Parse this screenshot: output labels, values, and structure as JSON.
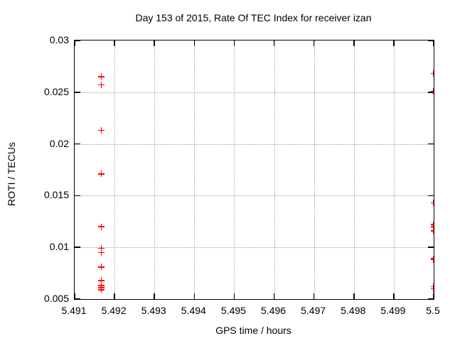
{
  "chart_data": {
    "type": "scatter",
    "title": "Day 153 of 2015, Rate Of TEC Index for receiver izan",
    "xlabel": "GPS time / hours",
    "ylabel": "ROTI / TECUs",
    "xlim": [
      5.491,
      5.5
    ],
    "ylim": [
      0.005,
      0.03
    ],
    "x_ticks": [
      5.491,
      5.492,
      5.493,
      5.494,
      5.495,
      5.496,
      5.497,
      5.498,
      5.499,
      5.5
    ],
    "x_tick_labels": [
      "5.491",
      "5.492",
      "5.493",
      "5.494",
      "5.495",
      "5.496",
      "5.497",
      "5.498",
      "5.499",
      "5.5"
    ],
    "y_ticks": [
      0.005,
      0.01,
      0.015,
      0.02,
      0.025,
      0.03
    ],
    "y_tick_labels": [
      "0.005",
      "0.01",
      "0.015",
      "0.02",
      "0.025",
      "0.03"
    ],
    "grid": true,
    "legend_position": "none",
    "marker": {
      "shape": "plus",
      "color": "#ff0000",
      "size": 9
    },
    "grid_color": "#a0a0a0",
    "axis_color": "#000000",
    "background_color": "#ffffff",
    "series": [
      {
        "name": "ROTI",
        "points": [
          [
            5.49167,
            0.0265
          ],
          [
            5.49167,
            0.0257
          ],
          [
            5.49167,
            0.0213
          ],
          [
            5.49167,
            0.0171
          ],
          [
            5.49167,
            0.012
          ],
          [
            5.49167,
            0.0099
          ],
          [
            5.49167,
            0.0095
          ],
          [
            5.49167,
            0.0081
          ],
          [
            5.49167,
            0.0068
          ],
          [
            5.49167,
            0.0063
          ],
          [
            5.49167,
            0.0061
          ],
          [
            5.49167,
            0.0059
          ],
          [
            5.5,
            0.0268
          ],
          [
            5.5,
            0.0251
          ],
          [
            5.5,
            0.0143
          ],
          [
            5.5,
            0.0122
          ],
          [
            5.5,
            0.012
          ],
          [
            5.5,
            0.0116
          ],
          [
            5.5,
            0.0089
          ],
          [
            5.5,
            0.0088
          ],
          [
            5.5,
            0.0062
          ],
          [
            5.5,
            0.006
          ]
        ]
      }
    ]
  }
}
